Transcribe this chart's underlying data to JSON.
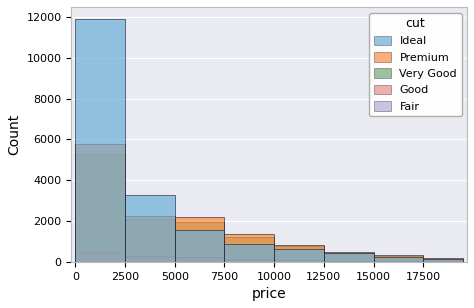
{
  "xlabel": "price",
  "ylabel": "Count",
  "legend_title": "cut",
  "legend_labels": [
    "Ideal",
    "Premium",
    "Very Good",
    "Good",
    "Fair"
  ],
  "colors": {
    "Ideal": "#6baed6",
    "Premium": "#fd8d3c",
    "Very Good": "#74a776",
    "Good": "#e8908c",
    "Fair": "#b3aad4"
  },
  "bin_edges": [
    0,
    2500,
    5000,
    7500,
    10000,
    12500,
    15000,
    17500,
    19500
  ],
  "counts": {
    "Ideal": [
      11902,
      3278,
      1550,
      879,
      619,
      425,
      252,
      119
    ],
    "Premium": [
      5765,
      2265,
      2199,
      1353,
      843,
      500,
      322,
      200
    ],
    "Very Good": [
      5282,
      2093,
      1945,
      1237,
      756,
      448,
      264,
      137
    ],
    "Good": [
      496,
      281,
      233,
      150,
      100,
      62,
      37,
      17
    ],
    "Fair": [
      374,
      213,
      175,
      111,
      71,
      44,
      26,
      12
    ]
  },
  "draw_order": [
    "Very Good",
    "Fair",
    "Good",
    "Premium",
    "Ideal"
  ],
  "ylim": [
    0,
    12500
  ],
  "xlim": [
    -200,
    19700
  ],
  "bg_color": "#eaeaf2",
  "figure_bg": "#ffffff",
  "grid_color": "#ffffff"
}
